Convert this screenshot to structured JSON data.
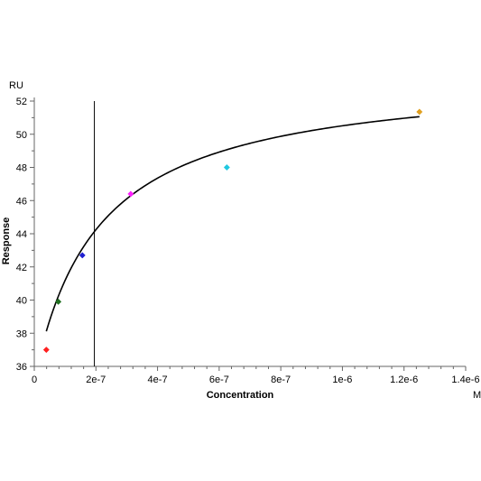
{
  "chart_data": {
    "type": "scatter",
    "xlabel": "Concentration",
    "ylabel": "Response",
    "x_unit": "M",
    "y_unit": "RU",
    "xlim": [
      0,
      1.4e-06
    ],
    "ylim": [
      36,
      52
    ],
    "x_ticks": [
      0,
      2e-07,
      4e-07,
      6e-07,
      8e-07,
      1e-06,
      1.2e-06,
      1.4e-06
    ],
    "x_tick_labels": [
      "0",
      "2e-7",
      "4e-7",
      "6e-7",
      "8e-7",
      "1e-6",
      "1.2e-6",
      "1.4e-6"
    ],
    "y_ticks": [
      36,
      38,
      40,
      42,
      44,
      46,
      48,
      50,
      52
    ],
    "y_tick_labels": [
      "36",
      "38",
      "40",
      "42",
      "44",
      "46",
      "48",
      "50",
      "52"
    ],
    "points": [
      {
        "x": 3.9e-08,
        "y": 37.0,
        "color": "#ff2020"
      },
      {
        "x": 7.8e-08,
        "y": 39.9,
        "color": "#207020"
      },
      {
        "x": 1.56e-07,
        "y": 42.7,
        "color": "#2020d0"
      },
      {
        "x": 3.13e-07,
        "y": 46.4,
        "color": "#ff20ff"
      },
      {
        "x": 6.25e-07,
        "y": 48.0,
        "color": "#20c8e0"
      },
      {
        "x": 1.25e-06,
        "y": 51.35,
        "color": "#e0a020"
      }
    ],
    "fit_curve": {
      "type": "langmuir",
      "offset": 35.22,
      "rmax": 18.5,
      "kd": 2.1e-07,
      "x_range": [
        3.9e-08,
        1.25e-06
      ],
      "color": "#000000"
    },
    "vertical_line": {
      "x": 1.95e-07,
      "color": "#000000"
    },
    "grid": false,
    "legend": "none"
  }
}
